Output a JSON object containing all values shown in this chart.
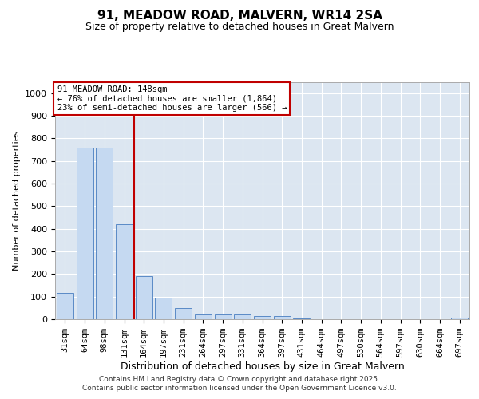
{
  "title": "91, MEADOW ROAD, MALVERN, WR14 2SA",
  "subtitle": "Size of property relative to detached houses in Great Malvern",
  "xlabel": "Distribution of detached houses by size in Great Malvern",
  "ylabel": "Number of detached properties",
  "footer_line1": "Contains HM Land Registry data © Crown copyright and database right 2025.",
  "footer_line2": "Contains public sector information licensed under the Open Government Licence v3.0.",
  "annotation_title": "91 MEADOW ROAD: 148sqm",
  "annotation_line1": "← 76% of detached houses are smaller (1,864)",
  "annotation_line2": "23% of semi-detached houses are larger (566) →",
  "bar_color": "#c5d9f1",
  "bar_edge_color": "#5a8ac6",
  "vline_color": "#c00000",
  "plot_bg_color": "#dce6f1",
  "categories": [
    "31sqm",
    "64sqm",
    "98sqm",
    "131sqm",
    "164sqm",
    "197sqm",
    "231sqm",
    "264sqm",
    "297sqm",
    "331sqm",
    "364sqm",
    "397sqm",
    "431sqm",
    "464sqm",
    "497sqm",
    "530sqm",
    "564sqm",
    "597sqm",
    "630sqm",
    "664sqm",
    "697sqm"
  ],
  "values": [
    118,
    760,
    760,
    420,
    190,
    97,
    48,
    20,
    22,
    20,
    15,
    15,
    5,
    0,
    0,
    0,
    0,
    0,
    0,
    0,
    8
  ],
  "ylim": [
    0,
    1050
  ],
  "yticks": [
    0,
    100,
    200,
    300,
    400,
    500,
    600,
    700,
    800,
    900,
    1000
  ],
  "vline_x_index": 3.5,
  "title_fontsize": 11,
  "subtitle_fontsize": 9,
  "ylabel_fontsize": 8,
  "xlabel_fontsize": 9,
  "tick_fontsize": 7.5,
  "annotation_fontsize": 7.5,
  "footer_fontsize": 6.5
}
